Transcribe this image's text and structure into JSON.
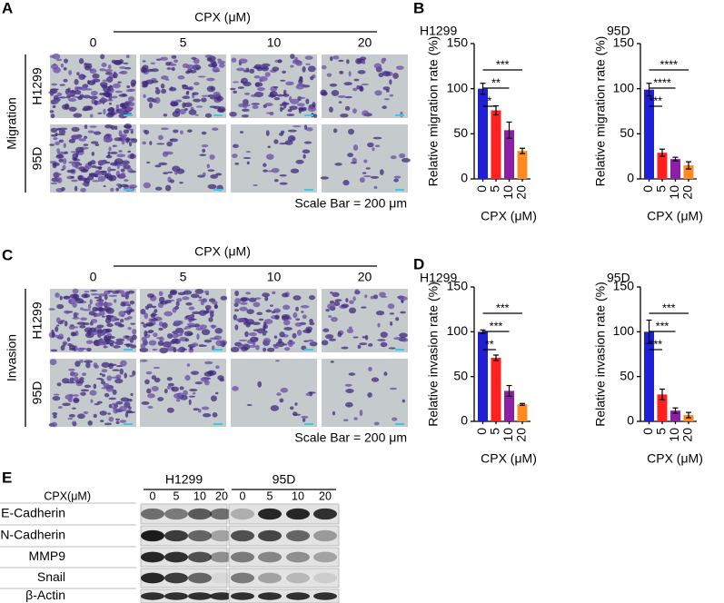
{
  "panel_labels": [
    "A",
    "B",
    "C",
    "D",
    "E"
  ],
  "migration": {
    "treatment_label": "CPX (μM)",
    "doses": [
      "0",
      "5",
      "10",
      "20"
    ],
    "assay": "Migration",
    "cell_lines": [
      "H1299",
      "95D"
    ],
    "scale_bar": "Scale Bar = 200 μm"
  },
  "invasion": {
    "treatment_label": "CPX (μM)",
    "doses": [
      "0",
      "5",
      "10",
      "20"
    ],
    "assay": "Invasion",
    "cell_lines": [
      "H1299",
      "95D"
    ],
    "scale_bar": "Scale Bar = 200 μm"
  },
  "chart_data": [
    {
      "type": "bar",
      "title": "H1299",
      "ylabel": "Relative migration rate (%)",
      "xlabel": "CPX (μM)",
      "categories": [
        "0",
        "5",
        "10",
        "20"
      ],
      "values": [
        100,
        76,
        54,
        31
      ],
      "errors": [
        6,
        5,
        9,
        3
      ],
      "colors": [
        "#1f1fd6",
        "#ff2020",
        "#8d1fa6",
        "#ff8a1f"
      ],
      "ylim": [
        0,
        150
      ],
      "yticks": [
        0,
        50,
        100,
        150
      ],
      "significance": [
        "*",
        "**",
        "***"
      ]
    },
    {
      "type": "bar",
      "title": "95D",
      "ylabel": "Relative migration rate (%)",
      "xlabel": "CPX (μM)",
      "categories": [
        "0",
        "5",
        "10",
        "20"
      ],
      "values": [
        99,
        29,
        22,
        15
      ],
      "errors": [
        7,
        4,
        2,
        4
      ],
      "colors": [
        "#1f1fd6",
        "#ff2020",
        "#8d1fa6",
        "#ff8a1f"
      ],
      "ylim": [
        0,
        150
      ],
      "yticks": [
        0,
        50,
        100,
        150
      ],
      "significance": [
        "***",
        "****",
        "****"
      ]
    },
    {
      "type": "bar",
      "title": "H1299",
      "ylabel": "Relative invasion rate (%)",
      "xlabel": "CPX (μM)",
      "categories": [
        "0",
        "5",
        "10",
        "20"
      ],
      "values": [
        100,
        71,
        34,
        19
      ],
      "errors": [
        2,
        3,
        6,
        1
      ],
      "colors": [
        "#1f1fd6",
        "#ff2020",
        "#8d1fa6",
        "#ff8a1f"
      ],
      "ylim": [
        0,
        150
      ],
      "yticks": [
        0,
        50,
        100,
        150
      ],
      "significance": [
        "**",
        "***",
        "***"
      ]
    },
    {
      "type": "bar",
      "title": "95D",
      "ylabel": "Relative invasion rate (%)",
      "xlabel": "CPX (μM)",
      "categories": [
        "0",
        "5",
        "10",
        "20"
      ],
      "values": [
        100,
        30,
        12,
        7
      ],
      "errors": [
        13,
        6,
        3,
        3
      ],
      "colors": [
        "#1f1fd6",
        "#ff2020",
        "#8d1fa6",
        "#ff8a1f"
      ],
      "ylim": [
        0,
        150
      ],
      "yticks": [
        0,
        50,
        100,
        150
      ],
      "significance": [
        "***",
        "***",
        "***"
      ]
    }
  ],
  "western_blot": {
    "cell_lines": [
      "H1299",
      "95D"
    ],
    "dose_label": "CPX(μM)",
    "doses": [
      "0",
      "5",
      "10",
      "20"
    ],
    "proteins": [
      "E-Cadherin",
      "N-Cadherin",
      "MMP9",
      "Snail",
      "β-Actin"
    ]
  }
}
